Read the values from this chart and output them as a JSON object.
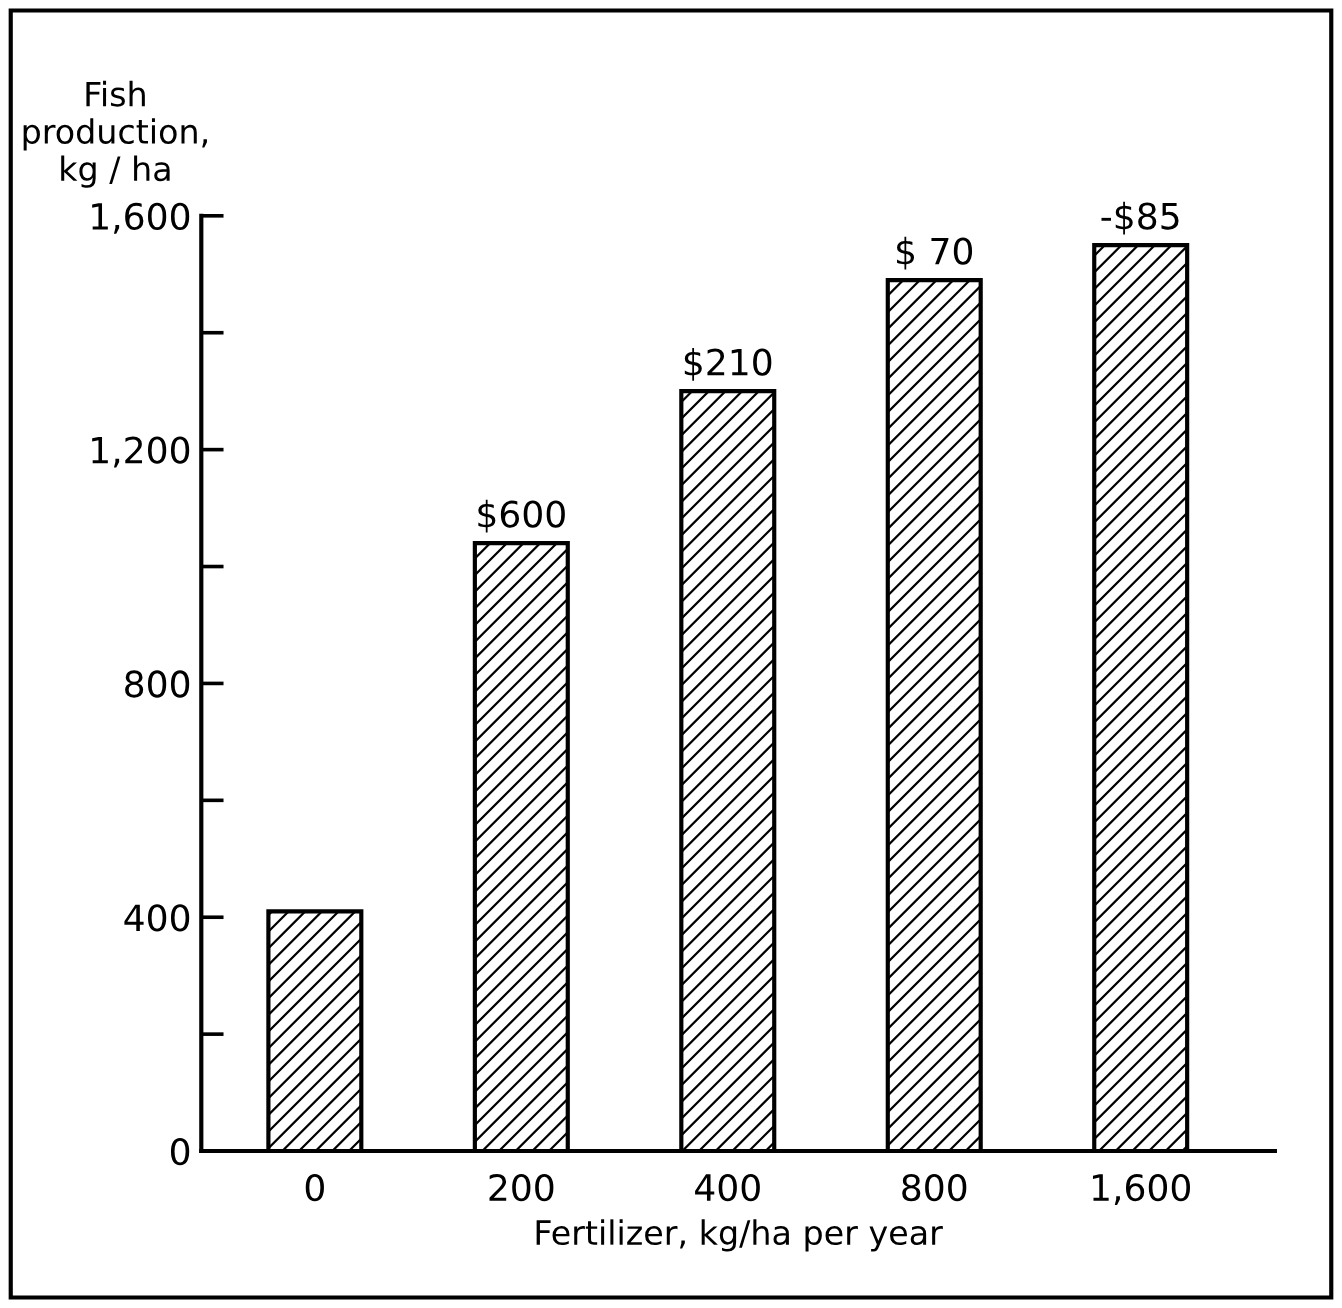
{
  "chart_data": {
    "type": "bar",
    "xlabel": "Fertilizer, kg/ha per year",
    "ylabel": "Fish\nproduction,\nkg / ha",
    "categories": [
      "0",
      "200",
      "400",
      "800",
      "1,600"
    ],
    "values": [
      410,
      1040,
      1300,
      1490,
      1550
    ],
    "annotations": [
      {
        "text": "$600",
        "x": "200",
        "y": 1040
      },
      {
        "text": "$210",
        "x": "400",
        "y": 1300
      },
      {
        "text": "$ 70",
        "x": "800",
        "y": 1490
      },
      {
        "text": "-$85",
        "x": "1,600",
        "y": 1550
      }
    ],
    "color": "#000000",
    "ylim": [
      0,
      1600
    ],
    "yticks": [
      0,
      {
        "value": 200,
        "label": null
      },
      400,
      {
        "value": 600,
        "label": null
      },
      800,
      {
        "value": 1000,
        "label": null
      },
      {
        "value": 1200,
        "label": "1,200"
      },
      {
        "value": 1400,
        "label": null
      },
      {
        "value": 1600,
        "label": "1,600"
      }
    ],
    "grid": false,
    "legend": false
  }
}
